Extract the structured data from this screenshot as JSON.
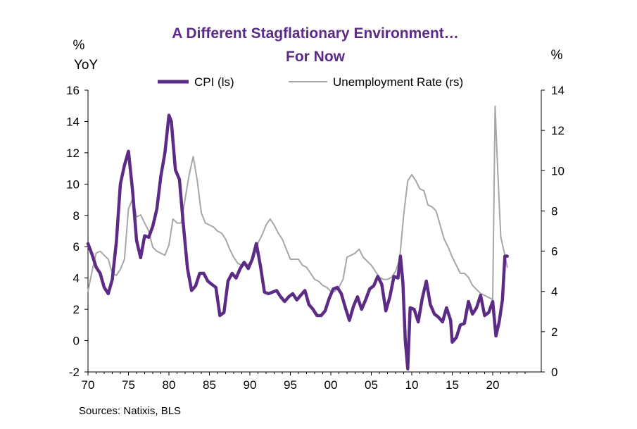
{
  "chart_data": {
    "type": "line",
    "title": "A Different Stagflationary Environment…",
    "subtitle": "For Now",
    "left_axis_unit": "%",
    "left_axis_unit2": "YoY",
    "right_axis_unit": "%",
    "source": "Sources: Natixis, BLS",
    "x_tick_labels": [
      "70",
      "75",
      "80",
      "85",
      "90",
      "95",
      "00",
      "05",
      "10",
      "15",
      "20"
    ],
    "x_tick_years": [
      1970,
      1975,
      1980,
      1985,
      1990,
      1995,
      2000,
      2005,
      2010,
      2015,
      2020
    ],
    "xlim": [
      1970,
      2026
    ],
    "ylim_left": [
      -2,
      16
    ],
    "ylim_right": [
      0,
      14
    ],
    "y_left_ticks": [
      -2,
      0,
      2,
      4,
      6,
      8,
      10,
      12,
      14,
      16
    ],
    "y_right_ticks": [
      0,
      2,
      4,
      6,
      8,
      10,
      12,
      14
    ],
    "grid": false,
    "legend_position": "top",
    "colors": {
      "cpi": "#5b2b86",
      "unemployment": "#a6a6a6",
      "title": "#5b2b86"
    },
    "series": [
      {
        "name": "CPI (ls)",
        "axis": "left",
        "x": [
          1970.0,
          1970.5,
          1971.0,
          1971.5,
          1972.0,
          1972.5,
          1973.0,
          1973.5,
          1974.0,
          1974.5,
          1975.0,
          1975.5,
          1976.0,
          1976.5,
          1977.0,
          1977.5,
          1978.0,
          1978.5,
          1979.0,
          1979.5,
          1980.0,
          1980.3,
          1980.8,
          1981.3,
          1981.8,
          1982.3,
          1982.8,
          1983.3,
          1983.8,
          1984.3,
          1984.8,
          1985.3,
          1985.8,
          1986.3,
          1986.8,
          1987.3,
          1987.8,
          1988.3,
          1988.8,
          1989.3,
          1989.8,
          1990.3,
          1990.8,
          1991.3,
          1991.8,
          1992.3,
          1992.8,
          1993.3,
          1993.8,
          1994.3,
          1994.8,
          1995.3,
          1995.8,
          1996.3,
          1996.8,
          1997.3,
          1997.8,
          1998.3,
          1998.8,
          1999.3,
          1999.8,
          2000.3,
          2000.8,
          2001.3,
          2001.8,
          2002.3,
          2002.8,
          2003.3,
          2003.8,
          2004.3,
          2004.8,
          2005.3,
          2005.8,
          2006.3,
          2006.8,
          2007.3,
          2007.8,
          2008.3,
          2008.6,
          2008.9,
          2009.2,
          2009.5,
          2009.8,
          2010.3,
          2010.8,
          2011.3,
          2011.8,
          2012.3,
          2012.8,
          2013.3,
          2013.8,
          2014.3,
          2014.8,
          2015.0,
          2015.5,
          2016.0,
          2016.5,
          2017.0,
          2017.5,
          2018.0,
          2018.5,
          2019.0,
          2019.5,
          2020.0,
          2020.4,
          2020.8,
          2021.2,
          2021.5,
          2021.8
        ],
        "values": [
          6.2,
          5.5,
          4.7,
          4.3,
          3.4,
          3.0,
          3.9,
          6.3,
          10.0,
          11.2,
          12.1,
          9.6,
          6.4,
          5.3,
          6.7,
          6.6,
          7.3,
          8.4,
          10.5,
          12.0,
          14.4,
          14.0,
          10.9,
          10.3,
          7.3,
          4.6,
          3.2,
          3.5,
          4.3,
          4.3,
          3.8,
          3.6,
          3.4,
          1.6,
          1.8,
          3.8,
          4.3,
          4.0,
          4.6,
          5.0,
          4.6,
          5.2,
          6.2,
          4.8,
          3.1,
          3.0,
          3.1,
          3.2,
          2.8,
          2.5,
          2.8,
          3.0,
          2.6,
          2.9,
          3.2,
          2.3,
          2.0,
          1.6,
          1.6,
          1.9,
          2.7,
          3.3,
          3.4,
          3.0,
          2.1,
          1.3,
          2.2,
          2.8,
          2.0,
          2.6,
          3.3,
          3.5,
          4.1,
          3.6,
          1.9,
          2.8,
          4.1,
          4.0,
          5.4,
          3.7,
          0.0,
          -1.8,
          2.1,
          2.0,
          1.2,
          2.7,
          3.8,
          2.3,
          1.7,
          1.5,
          1.2,
          2.1,
          1.3,
          -0.1,
          0.2,
          1.0,
          1.1,
          2.5,
          1.7,
          2.1,
          2.9,
          1.6,
          1.8,
          2.5,
          0.3,
          1.2,
          2.6,
          5.4,
          5.4
        ],
        "color": "#5b2b86"
      },
      {
        "name": "Unemployment Rate (rs)",
        "axis": "right",
        "x": [
          1970.0,
          1970.5,
          1971.0,
          1971.5,
          1972.0,
          1972.5,
          1973.0,
          1973.5,
          1974.0,
          1974.5,
          1975.0,
          1975.5,
          1976.0,
          1976.5,
          1977.0,
          1977.5,
          1978.0,
          1978.5,
          1979.0,
          1979.5,
          1980.0,
          1980.5,
          1981.0,
          1981.5,
          1982.0,
          1982.5,
          1983.0,
          1983.5,
          1984.0,
          1984.5,
          1985.0,
          1985.5,
          1986.0,
          1986.5,
          1987.0,
          1987.5,
          1988.0,
          1988.5,
          1989.0,
          1989.5,
          1990.0,
          1990.5,
          1991.0,
          1991.5,
          1992.0,
          1992.5,
          1993.0,
          1993.5,
          1994.0,
          1994.5,
          1995.0,
          1995.5,
          1996.0,
          1996.5,
          1997.0,
          1997.5,
          1998.0,
          1998.5,
          1999.0,
          1999.5,
          2000.0,
          2000.5,
          2001.0,
          2001.5,
          2002.0,
          2002.5,
          2003.0,
          2003.5,
          2004.0,
          2004.5,
          2005.0,
          2005.5,
          2006.0,
          2006.5,
          2007.0,
          2007.5,
          2008.0,
          2008.5,
          2009.0,
          2009.5,
          2010.0,
          2010.5,
          2011.0,
          2011.5,
          2012.0,
          2012.5,
          2013.0,
          2013.5,
          2014.0,
          2014.5,
          2015.0,
          2015.5,
          2016.0,
          2016.5,
          2017.0,
          2017.5,
          2018.0,
          2018.5,
          2019.0,
          2019.5,
          2020.0,
          2020.3,
          2020.5,
          2020.8,
          2021.0,
          2021.5,
          2021.8
        ],
        "values": [
          4.0,
          5.0,
          5.9,
          6.0,
          5.8,
          5.6,
          4.9,
          4.8,
          5.1,
          5.6,
          8.1,
          8.6,
          7.7,
          7.8,
          7.4,
          7.0,
          6.2,
          6.0,
          5.9,
          5.8,
          6.3,
          7.6,
          7.4,
          7.4,
          8.6,
          9.8,
          10.7,
          9.5,
          7.9,
          7.4,
          7.3,
          7.2,
          7.0,
          6.9,
          6.6,
          6.1,
          5.7,
          5.4,
          5.3,
          5.3,
          5.4,
          5.7,
          6.4,
          6.8,
          7.3,
          7.6,
          7.3,
          6.9,
          6.6,
          6.1,
          5.6,
          5.6,
          5.6,
          5.3,
          5.2,
          4.9,
          4.6,
          4.5,
          4.3,
          4.2,
          4.0,
          4.0,
          4.2,
          4.6,
          5.7,
          5.8,
          5.9,
          6.1,
          5.7,
          5.5,
          5.3,
          5.0,
          4.7,
          4.6,
          4.6,
          4.7,
          5.0,
          5.6,
          7.8,
          9.5,
          9.8,
          9.5,
          9.1,
          9.0,
          8.3,
          8.2,
          8.0,
          7.3,
          6.6,
          6.2,
          5.7,
          5.3,
          4.9,
          4.9,
          4.7,
          4.3,
          4.1,
          3.9,
          3.8,
          3.7,
          3.6,
          13.2,
          11.1,
          8.4,
          6.7,
          5.8,
          5.2
        ],
        "color": "#a6a6a6"
      }
    ]
  }
}
